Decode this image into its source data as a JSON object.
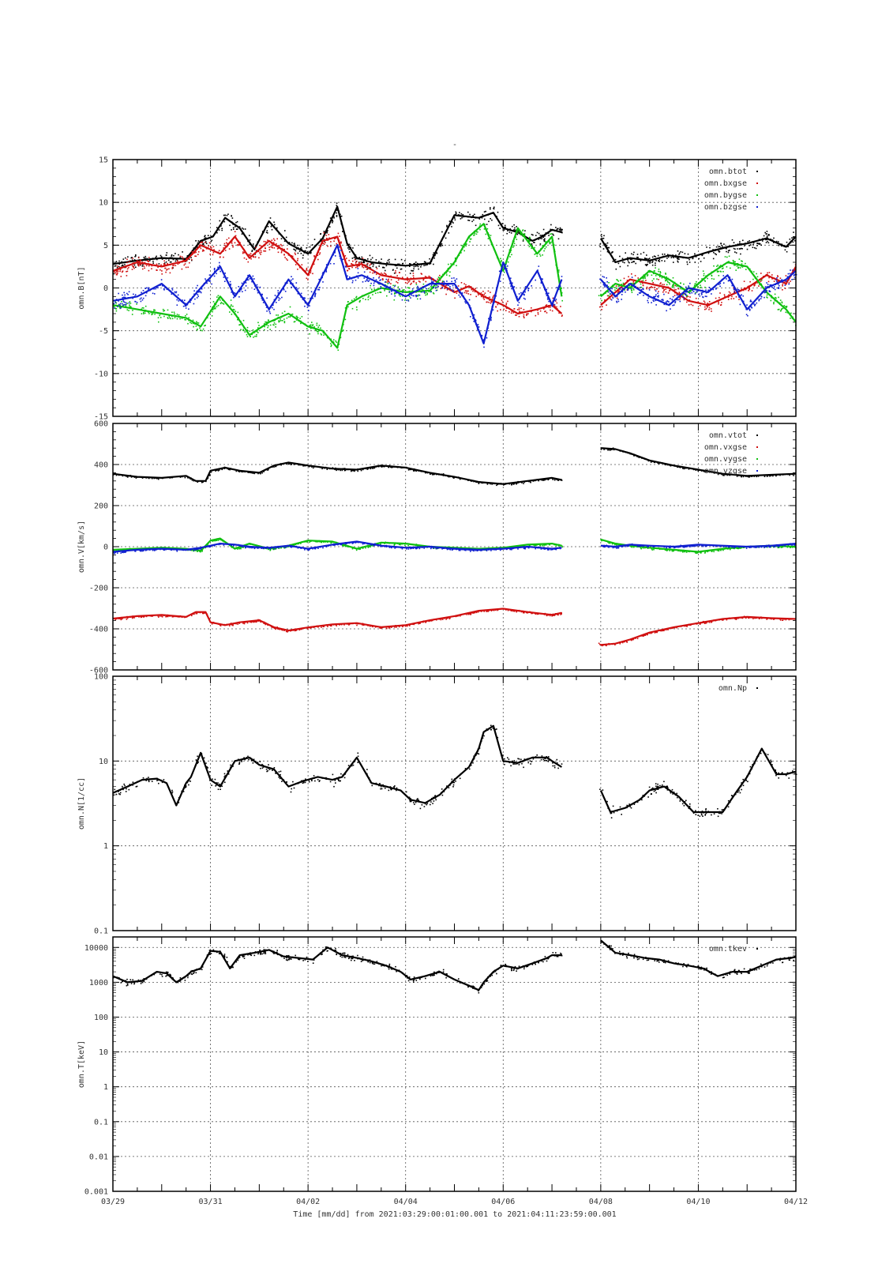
{
  "figure": {
    "title": "-",
    "xlabel": "Time [mm/dd]  from 2021:03:29:00:01:00.001  to  2021:04:11:23:59:00.001"
  },
  "chart_data": [
    {
      "type": "scatter",
      "panel": "B",
      "ylabel": "omn.B[nT]",
      "xlim": [
        "03/29",
        "04/12"
      ],
      "ylim": [
        -15,
        15
      ],
      "yscale": "linear",
      "yticks": [
        "15",
        "10",
        "5",
        "0",
        "-5",
        "-10",
        "-15"
      ],
      "grid": true,
      "legend_position": "top-right",
      "data_gap": [
        9.2,
        9.95
      ],
      "series": [
        {
          "name": "omn.btot",
          "color": "#000000",
          "x": [
            0,
            0.5,
            1,
            1.5,
            1.8,
            2.05,
            2.3,
            2.6,
            2.9,
            3.2,
            3.6,
            4.0,
            4.3,
            4.6,
            4.8,
            5.0,
            5.3,
            5.6,
            6.0,
            6.5,
            7.0,
            7.5,
            7.8,
            8.0,
            8.3,
            8.6,
            8.8,
            9.0,
            9.2,
            10.0,
            10.3,
            10.6,
            11.0,
            11.4,
            11.8,
            12.2,
            12.6,
            13.0,
            13.4,
            13.8,
            14.0
          ],
          "y": [
            2.8,
            3.2,
            3.5,
            3.4,
            5.5,
            6.0,
            8.2,
            7.0,
            4.5,
            7.8,
            5.2,
            4.0,
            5.8,
            9.5,
            5.2,
            3.5,
            3.0,
            2.8,
            2.6,
            2.9,
            8.5,
            8.2,
            8.8,
            7.0,
            6.5,
            5.5,
            6.0,
            6.8,
            6.5,
            5.8,
            3.0,
            3.5,
            3.2,
            3.8,
            3.5,
            4.2,
            4.8,
            5.2,
            5.8,
            4.8,
            6.0
          ]
        },
        {
          "name": "omn.bxgse",
          "color": "#d01010",
          "x": [
            0,
            0.5,
            1,
            1.5,
            1.8,
            2.2,
            2.5,
            2.8,
            3.2,
            3.6,
            4.0,
            4.3,
            4.6,
            4.8,
            5.1,
            5.5,
            6.0,
            6.5,
            7.0,
            7.3,
            7.6,
            8.0,
            8.3,
            8.7,
            9.0,
            9.2,
            10.0,
            10.3,
            10.6,
            11.0,
            11.4,
            11.8,
            12.2,
            12.6,
            13.0,
            13.4,
            13.8,
            14.0
          ],
          "y": [
            2.0,
            3.0,
            2.5,
            3.2,
            5.0,
            4.0,
            6.0,
            3.5,
            5.5,
            4.0,
            1.5,
            5.5,
            6.0,
            2.5,
            2.8,
            1.5,
            1.0,
            1.2,
            -0.5,
            0.2,
            -1.0,
            -2.0,
            -3.0,
            -2.5,
            -2.0,
            -3.0,
            -2.0,
            -0.5,
            1.0,
            0.5,
            0.0,
            -1.5,
            -2.0,
            -1.0,
            0.0,
            1.5,
            0.5,
            2.5
          ]
        },
        {
          "name": "omn.bygse",
          "color": "#10c010",
          "x": [
            0,
            0.5,
            1,
            1.5,
            1.8,
            2.2,
            2.5,
            2.8,
            3.2,
            3.6,
            4.0,
            4.3,
            4.6,
            4.8,
            5.1,
            5.5,
            6.0,
            6.5,
            7.0,
            7.3,
            7.6,
            8.0,
            8.3,
            8.7,
            9.0,
            9.2,
            10.0,
            10.3,
            10.6,
            11.0,
            11.4,
            11.8,
            12.2,
            12.6,
            13.0,
            13.4,
            13.8,
            14.0
          ],
          "y": [
            -2.0,
            -2.5,
            -3.0,
            -3.5,
            -4.5,
            -1.0,
            -3.0,
            -5.5,
            -4.0,
            -3.0,
            -4.5,
            -5.0,
            -7.0,
            -2.0,
            -1.0,
            0.0,
            -0.5,
            -0.3,
            3.0,
            6.0,
            7.5,
            2.0,
            7.0,
            4.0,
            6.0,
            -1.0,
            -1.0,
            0.5,
            0.0,
            2.0,
            1.0,
            -0.5,
            1.5,
            3.0,
            2.5,
            -0.5,
            -2.5,
            -4.0
          ]
        },
        {
          "name": "omn.bzgse",
          "color": "#1020d0",
          "x": [
            0,
            0.5,
            1,
            1.5,
            1.8,
            2.2,
            2.5,
            2.8,
            3.2,
            3.6,
            4.0,
            4.3,
            4.6,
            4.8,
            5.1,
            5.5,
            6.0,
            6.5,
            7.0,
            7.3,
            7.6,
            8.0,
            8.3,
            8.7,
            9.0,
            9.2,
            10.0,
            10.3,
            10.6,
            11.0,
            11.4,
            11.8,
            12.2,
            12.6,
            13.0,
            13.4,
            13.8,
            14.0
          ],
          "y": [
            -1.5,
            -1.0,
            0.5,
            -2.0,
            0.0,
            2.5,
            -1.0,
            1.5,
            -2.5,
            1.0,
            -2.0,
            1.5,
            5.0,
            1.0,
            1.5,
            0.5,
            -1.0,
            0.5,
            0.5,
            -2.0,
            -6.5,
            3.0,
            -1.5,
            2.0,
            -2.0,
            1.0,
            1.0,
            -1.0,
            0.5,
            -1.0,
            -2.0,
            0.0,
            -0.5,
            1.5,
            -2.5,
            0.0,
            1.0,
            2.0
          ]
        }
      ]
    },
    {
      "type": "scatter",
      "panel": "V",
      "ylabel": "omn.V[km/s]",
      "xlim": [
        "03/29",
        "04/12"
      ],
      "ylim": [
        -600,
        600
      ],
      "yscale": "linear",
      "yticks": [
        "600",
        "400",
        "200",
        "0",
        "-200",
        "-400",
        "-600"
      ],
      "grid": true,
      "legend_position": "top-right",
      "data_gap": [
        9.2,
        9.95
      ],
      "series": [
        {
          "name": "omn.vtot",
          "color": "#000000",
          "x": [
            0,
            0.5,
            1,
            1.5,
            1.7,
            1.9,
            2.0,
            2.3,
            2.6,
            3.0,
            3.3,
            3.6,
            4.0,
            4.5,
            5.0,
            5.5,
            6.0,
            6.5,
            7.0,
            7.5,
            8.0,
            8.5,
            9.0,
            9.2,
            10.0,
            10.3,
            10.6,
            11.0,
            11.5,
            12.0,
            12.5,
            13.0,
            13.5,
            14.0
          ],
          "y": [
            355,
            340,
            335,
            345,
            320,
            320,
            370,
            385,
            370,
            360,
            395,
            410,
            395,
            380,
            375,
            395,
            385,
            360,
            340,
            315,
            305,
            320,
            335,
            325,
            480,
            475,
            455,
            420,
            395,
            375,
            355,
            345,
            350,
            355
          ]
        },
        {
          "name": "omn.vxgse",
          "color": "#d01010",
          "x": [
            0,
            0.5,
            1,
            1.5,
            1.7,
            1.9,
            2.0,
            2.3,
            2.6,
            3.0,
            3.3,
            3.6,
            4.0,
            4.5,
            5.0,
            5.5,
            6.0,
            6.5,
            7.0,
            7.5,
            8.0,
            8.5,
            9.0,
            9.2,
            10.0,
            10.3,
            10.6,
            11.0,
            11.5,
            12.0,
            12.5,
            13.0,
            13.5,
            14.0
          ],
          "y": [
            -350,
            -338,
            -332,
            -342,
            -318,
            -318,
            -368,
            -382,
            -368,
            -358,
            -392,
            -408,
            -393,
            -378,
            -372,
            -392,
            -382,
            -358,
            -338,
            -312,
            -302,
            -318,
            -332,
            -322,
            -478,
            -472,
            -452,
            -418,
            -392,
            -372,
            -352,
            -342,
            -348,
            -352
          ]
        },
        {
          "name": "omn.vygse",
          "color": "#10c010",
          "x": [
            0,
            0.5,
            1,
            1.5,
            1.8,
            2.0,
            2.2,
            2.5,
            2.8,
            3.2,
            3.6,
            4.0,
            4.5,
            5.0,
            5.5,
            6.0,
            6.5,
            7.0,
            7.5,
            8.0,
            8.5,
            9.0,
            9.2,
            10.0,
            10.3,
            10.6,
            11.0,
            11.5,
            12.0,
            12.5,
            13.0,
            13.5,
            14.0
          ],
          "y": [
            -15,
            -10,
            -5,
            -10,
            -20,
            30,
            40,
            -10,
            15,
            -10,
            5,
            30,
            25,
            -10,
            20,
            15,
            0,
            -5,
            -10,
            -5,
            10,
            15,
            5,
            35,
            15,
            5,
            -5,
            -15,
            -25,
            -10,
            0,
            5,
            0
          ]
        },
        {
          "name": "omn.vzgse",
          "color": "#1020d0",
          "x": [
            0,
            0.5,
            1,
            1.5,
            1.8,
            2.0,
            2.2,
            2.5,
            2.8,
            3.2,
            3.6,
            4.0,
            4.5,
            5.0,
            5.5,
            6.0,
            6.5,
            7.0,
            7.5,
            8.0,
            8.5,
            9.0,
            9.2,
            10.0,
            10.3,
            10.6,
            11.0,
            11.5,
            12.0,
            12.5,
            13.0,
            13.5,
            14.0
          ],
          "y": [
            -25,
            -15,
            -10,
            -15,
            -5,
            5,
            15,
            10,
            0,
            -5,
            5,
            -10,
            10,
            25,
            5,
            -5,
            0,
            -10,
            -15,
            -10,
            0,
            -10,
            -5,
            5,
            0,
            10,
            5,
            0,
            10,
            5,
            0,
            5,
            15
          ]
        }
      ]
    },
    {
      "type": "scatter",
      "panel": "N",
      "ylabel": "omn.N[1/cc]",
      "xlim": [
        "03/29",
        "04/12"
      ],
      "ylim": [
        0.1,
        100
      ],
      "yscale": "log",
      "yticks": [
        "100",
        "10",
        "1",
        "0.1"
      ],
      "grid": true,
      "legend_position": "top-right",
      "data_gap": [
        9.2,
        9.95
      ],
      "series": [
        {
          "name": "omn.Np",
          "color": "#000000",
          "x": [
            0,
            0.3,
            0.6,
            0.9,
            1.1,
            1.3,
            1.5,
            1.6,
            1.8,
            2.0,
            2.2,
            2.5,
            2.8,
            3.0,
            3.3,
            3.6,
            3.9,
            4.2,
            4.5,
            4.7,
            5.0,
            5.3,
            5.6,
            5.9,
            6.1,
            6.4,
            6.7,
            7.0,
            7.3,
            7.5,
            7.6,
            7.8,
            8.0,
            8.3,
            8.6,
            8.9,
            9.0,
            9.2,
            10.0,
            10.2,
            10.5,
            10.8,
            11.0,
            11.3,
            11.6,
            11.9,
            12.2,
            12.5,
            12.8,
            13.0,
            13.3,
            13.6,
            13.8,
            14.0
          ],
          "y": [
            4.2,
            5.0,
            6.0,
            6.2,
            5.5,
            3.0,
            5.5,
            6.5,
            12.5,
            6.0,
            5.0,
            10.0,
            11.0,
            9.0,
            8.0,
            5.0,
            5.8,
            6.5,
            6.0,
            6.5,
            11.0,
            5.5,
            5.0,
            4.5,
            3.5,
            3.2,
            4.0,
            6.0,
            8.5,
            14.0,
            22.0,
            26.0,
            10.0,
            9.5,
            11.0,
            11.0,
            10.0,
            8.5,
            4.5,
            2.5,
            2.8,
            3.5,
            4.5,
            5.0,
            3.8,
            2.5,
            2.5,
            2.5,
            4.5,
            6.5,
            14.0,
            7.0,
            7.0,
            7.5
          ]
        }
      ]
    },
    {
      "type": "scatter",
      "panel": "T",
      "ylabel": "omn.T[keV]",
      "xlim": [
        "03/29",
        "04/12"
      ],
      "ylim": [
        0.001,
        20000
      ],
      "yscale": "log",
      "yticks": [
        "10000",
        "1000",
        "100",
        "10",
        "1",
        "0.1",
        "0.01",
        "0.001"
      ],
      "grid": true,
      "legend_position": "top-right",
      "data_gap": [
        9.2,
        9.95
      ],
      "series": [
        {
          "name": "omn.tkev",
          "color": "#000000",
          "x": [
            0,
            0.3,
            0.6,
            0.9,
            1.1,
            1.3,
            1.5,
            1.6,
            1.8,
            2.0,
            2.2,
            2.4,
            2.6,
            2.9,
            3.2,
            3.5,
            3.8,
            4.1,
            4.4,
            4.7,
            5.0,
            5.3,
            5.6,
            5.9,
            6.1,
            6.4,
            6.7,
            7.0,
            7.3,
            7.5,
            7.6,
            7.8,
            8.0,
            8.3,
            8.6,
            8.9,
            9.0,
            9.2,
            10.0,
            10.3,
            10.6,
            10.9,
            11.2,
            11.5,
            11.8,
            12.1,
            12.4,
            12.7,
            13.0,
            13.3,
            13.6,
            13.9,
            14.0
          ],
          "y": [
            1500,
            1000,
            1100,
            2000,
            1800,
            1000,
            1500,
            2000,
            2500,
            8000,
            7500,
            2500,
            6000,
            7000,
            8500,
            5500,
            5000,
            4500,
            10000,
            6000,
            5000,
            4000,
            3000,
            2000,
            1200,
            1500,
            2000,
            1200,
            800,
            600,
            1000,
            2000,
            3000,
            2500,
            3500,
            5000,
            6000,
            6000,
            16000,
            7000,
            6000,
            5000,
            4500,
            3500,
            3000,
            2500,
            1500,
            2000,
            2000,
            3000,
            4500,
            5000,
            5500
          ]
        }
      ]
    }
  ],
  "x_ticks": [
    {
      "pos": 0,
      "label": "03/29"
    },
    {
      "pos": 2,
      "label": "03/31"
    },
    {
      "pos": 4,
      "label": "04/02"
    },
    {
      "pos": 6,
      "label": "04/04"
    },
    {
      "pos": 8,
      "label": "04/06"
    },
    {
      "pos": 10,
      "label": "04/08"
    },
    {
      "pos": 12,
      "label": "04/10"
    },
    {
      "pos": 14,
      "label": "04/12"
    }
  ]
}
